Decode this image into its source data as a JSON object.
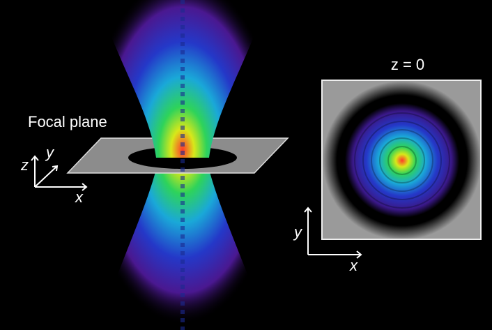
{
  "labels": {
    "focal_plane": "Focal plane",
    "left_axes": {
      "z": "z",
      "y": "y",
      "x": "x"
    },
    "inset_title": "z = 0",
    "inset_axes": {
      "y": "y",
      "x": "x"
    }
  }
}
